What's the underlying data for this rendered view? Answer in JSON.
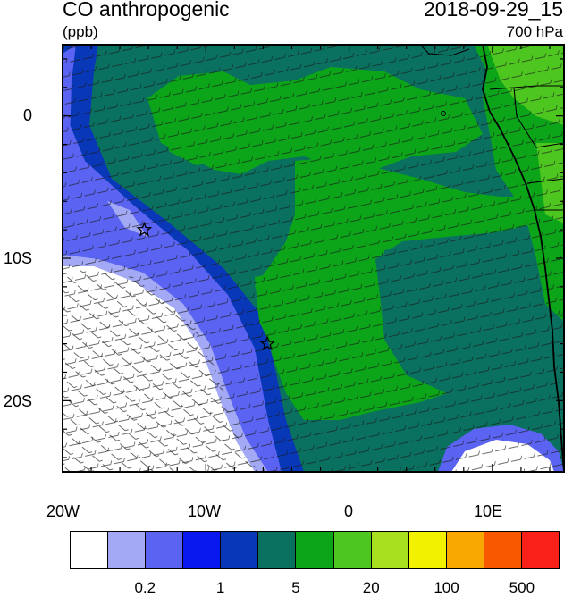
{
  "title": "CO anthropogenic",
  "units": "(ppb)",
  "datetime": "2018-09-29_15",
  "level": "700 hPa",
  "x_ticks": [
    "20W",
    "10W",
    "0",
    "10E"
  ],
  "y_ticks": [
    "0",
    "10S",
    "20S"
  ],
  "colorbar": {
    "colors": [
      "#ffffff",
      "#a3a9f4",
      "#5b63f2",
      "#0a18f0",
      "#0838b8",
      "#0a7060",
      "#0ca418",
      "#4ec620",
      "#a8e020",
      "#f2f200",
      "#f8a800",
      "#f85800",
      "#f82018"
    ],
    "labels": [
      "0.2",
      "1",
      "5",
      "20",
      "100",
      "500"
    ]
  },
  "markers": [
    {
      "name": "star-marker-1",
      "lon": -14.3,
      "lat": -8.0
    },
    {
      "name": "star-marker-2",
      "lon": -5.7,
      "lat": -16.0
    }
  ]
}
